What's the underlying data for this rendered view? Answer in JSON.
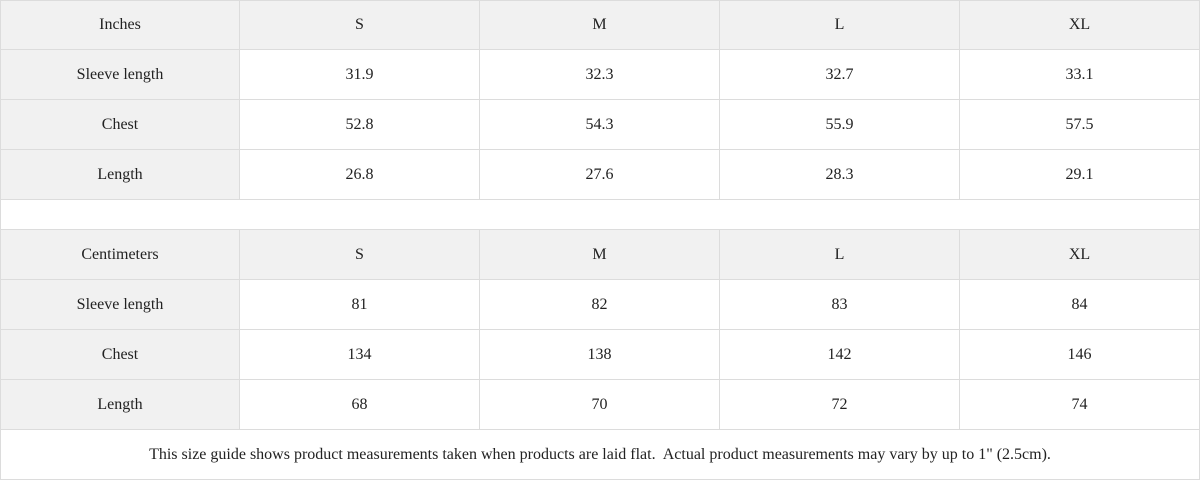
{
  "sizes": [
    "S",
    "M",
    "L",
    "XL"
  ],
  "inches": {
    "unit_label": "Inches",
    "rows": [
      {
        "label": "Sleeve length",
        "values": [
          "31.9",
          "32.3",
          "32.7",
          "33.1"
        ]
      },
      {
        "label": "Chest",
        "values": [
          "52.8",
          "54.3",
          "55.9",
          "57.5"
        ]
      },
      {
        "label": "Length",
        "values": [
          "26.8",
          "27.6",
          "28.3",
          "29.1"
        ]
      }
    ]
  },
  "centimeters": {
    "unit_label": "Centimeters",
    "rows": [
      {
        "label": "Sleeve length",
        "values": [
          "81",
          "82",
          "83",
          "84"
        ]
      },
      {
        "label": "Chest",
        "values": [
          "134",
          "138",
          "142",
          "146"
        ]
      },
      {
        "label": "Length",
        "values": [
          "68",
          "70",
          "72",
          "74"
        ]
      }
    ]
  },
  "footer_note": "This size guide shows product measurements taken when products are laid flat.  Actual product measurements may vary by up to 1\" (2.5cm)."
}
